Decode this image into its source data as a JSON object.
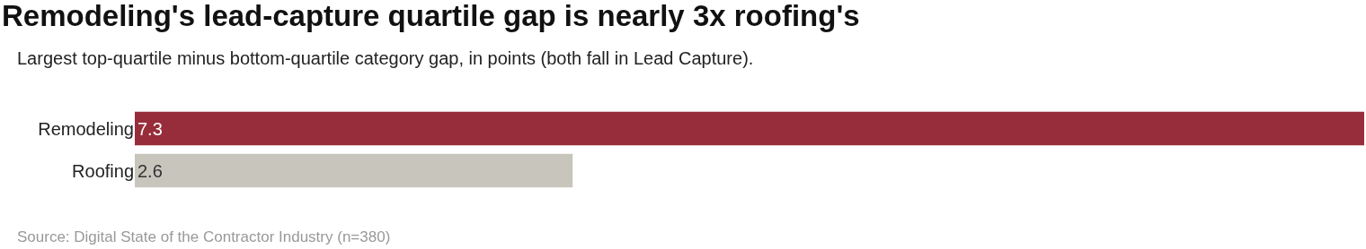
{
  "chart_data": {
    "type": "bar",
    "orientation": "horizontal",
    "title": "Remodeling's lead-capture quartile gap is nearly 3x roofing's",
    "subtitle": "Largest top-quartile minus bottom-quartile category gap, in points (both fall in Lead Capture).",
    "categories": [
      "Remodeling",
      "Roofing"
    ],
    "values": [
      7.3,
      2.6
    ],
    "colors": [
      "#972d3a",
      "#c8c5bd"
    ],
    "data_labels": true,
    "annotations": [
      "Source: Digital State of the Contractor Industry (n=380)"
    ]
  }
}
